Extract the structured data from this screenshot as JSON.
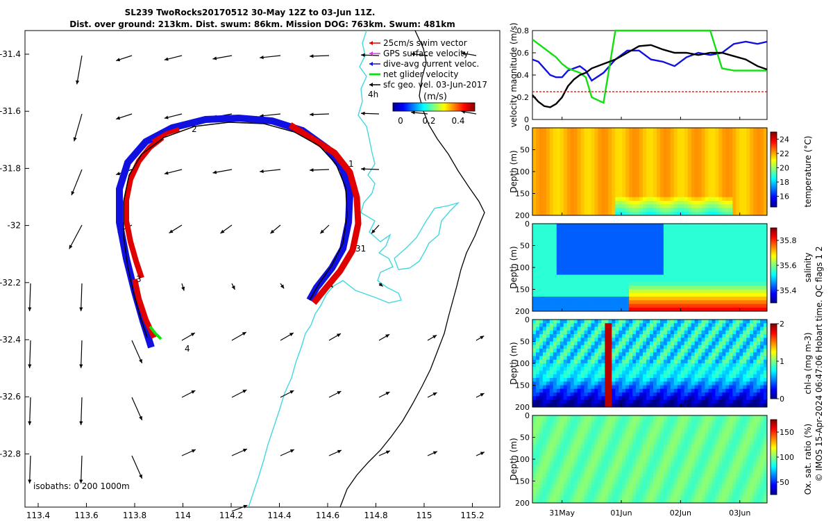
{
  "title_line1": "SL239 TwoRocks20170512 30-May 12Z to 03-Jun 11Z.",
  "title_line2": "Dist. over ground: 213km. Dist. swum: 86km. Mission DOG: 763km. Swum: 481km",
  "credit": "© IMOS 15-Apr-2024 06:47:06 Hobart time. QC flags 1  2",
  "map": {
    "xticks": [
      "113.4",
      "113.6",
      "113.8",
      "114",
      "114.2",
      "114.4",
      "114.6",
      "114.8",
      "115",
      "115.2"
    ],
    "yticks": [
      "-31.4",
      "-31.6",
      "-31.8",
      "-32",
      "-32.2",
      "-32.4",
      "-32.6",
      "-32.8"
    ],
    "legend": [
      "25cm/s swim vector",
      "GPS surface velocity",
      "dive-avg current veloc.",
      "net glider velocity",
      "sfc geo. vel. 03-Jun-2017"
    ],
    "legend_colors": [
      "#e00000",
      "#d040d0",
      "#1010e0",
      "#10e010",
      "#000000"
    ],
    "scale_label": "4h",
    "colorbar_unit": "(m/s)",
    "colorbar_ticks": [
      "0",
      "0.2",
      "0.4"
    ],
    "day_labels": [
      "1",
      "2",
      "31",
      "3",
      "4"
    ],
    "isobaths_label": "isobaths: 0   200  1000m",
    "coast_color": "#000000",
    "isobath_color": "#40d8e0"
  },
  "chart_data": [
    {
      "type": "line",
      "title": "",
      "ylabel": "velocity magnitude (m/s)",
      "ylim": [
        0,
        0.8
      ],
      "yticks": [
        "0",
        "0.2",
        "0.4",
        "0.6",
        "0.8"
      ],
      "xlabel": "",
      "x_days": [
        0.0,
        0.1,
        0.2,
        0.3,
        0.4,
        0.5,
        0.6,
        0.7,
        0.8,
        0.9,
        1.0,
        1.2,
        1.4,
        1.6,
        1.8,
        2.0,
        2.2,
        2.4,
        2.6,
        2.8,
        3.0,
        3.2,
        3.4,
        3.6,
        3.8,
        3.96
      ],
      "series": [
        {
          "name": "dive-avg current veloc.",
          "color": "#1010e0",
          "values": [
            0.54,
            0.52,
            0.46,
            0.4,
            0.38,
            0.38,
            0.44,
            0.46,
            0.48,
            0.44,
            0.35,
            0.42,
            0.54,
            0.62,
            0.62,
            0.54,
            0.52,
            0.48,
            0.56,
            0.6,
            0.58,
            0.6,
            0.68,
            0.7,
            0.68,
            0.7
          ]
        },
        {
          "name": "net glider velocity",
          "color": "#10e010",
          "values": [
            0.72,
            0.68,
            0.64,
            0.6,
            0.56,
            0.5,
            0.46,
            0.44,
            0.42,
            0.38,
            0.2,
            0.15,
            0.8,
            0.8,
            0.8,
            0.8,
            0.8,
            0.8,
            0.8,
            0.8,
            0.8,
            0.46,
            0.44,
            0.44,
            0.44,
            0.44
          ]
        },
        {
          "name": "sfc geo. vel. (black)",
          "color": "#000000",
          "values": [
            0.22,
            0.16,
            0.12,
            0.11,
            0.14,
            0.2,
            0.3,
            0.36,
            0.4,
            0.42,
            0.46,
            0.5,
            0.54,
            0.6,
            0.66,
            0.67,
            0.63,
            0.6,
            0.6,
            0.58,
            0.6,
            0.6,
            0.57,
            0.54,
            0.48,
            0.45
          ]
        },
        {
          "name": "25cm/s swim vector",
          "color": "#e00000",
          "values": [
            0.25,
            0.25,
            0.25,
            0.25,
            0.25,
            0.25,
            0.25,
            0.25,
            0.25,
            0.25,
            0.25,
            0.25,
            0.25,
            0.25,
            0.25,
            0.25,
            0.25,
            0.25,
            0.25,
            0.25,
            0.25,
            0.25,
            0.25,
            0.25,
            0.25,
            0.25
          ]
        }
      ]
    },
    {
      "type": "heatmap",
      "variable": "temperature",
      "colorbar_label": "temperature (°C)",
      "clim": [
        14.5,
        25
      ],
      "cbar_ticks": [
        16,
        18,
        20,
        22,
        24
      ],
      "ylabel": "Depth (m)",
      "yticks": [
        "0",
        "50",
        "100",
        "150",
        "200"
      ],
      "ylim": [
        0,
        200
      ],
      "base_value": 21.8,
      "deep_value": 18.5
    },
    {
      "type": "heatmap",
      "variable": "salinity",
      "colorbar_label": "salinity",
      "clim": [
        35.3,
        35.9
      ],
      "cbar_ticks": [
        35.4,
        35.6,
        35.8
      ],
      "ylabel": "Depth (m)",
      "yticks": [
        "0",
        "50",
        "100",
        "150",
        "200"
      ],
      "ylim": [
        0,
        200
      ],
      "base_value": 35.55,
      "deep_value": 35.82
    },
    {
      "type": "heatmap",
      "variable": "chl-a",
      "colorbar_label": "chl-a (mg m-3)",
      "clim": [
        0,
        2
      ],
      "cbar_ticks": [
        0,
        1,
        2
      ],
      "ylabel": "Depth (m)",
      "yticks": [
        "0",
        "50",
        "100",
        "150",
        "200"
      ],
      "ylim": [
        0,
        200
      ],
      "base_value": 0.75,
      "deep_value": 0.1
    },
    {
      "type": "heatmap",
      "variable": "oxygen",
      "colorbar_label": "Ox. sat. ratio (%)",
      "clim": [
        25,
        175
      ],
      "cbar_ticks": [
        50,
        100,
        150
      ],
      "ylabel": "Depth (m)",
      "yticks": [
        "0",
        "50",
        "100",
        "150",
        "200"
      ],
      "ylim": [
        0,
        200
      ],
      "base_value": 96,
      "deep_value": 100
    }
  ],
  "time_axis": {
    "labels": [
      "31May",
      "01Jun",
      "02Jun",
      "03Jun"
    ],
    "values": [
      0.5,
      1.5,
      2.5,
      3.5
    ],
    "range": [
      0,
      3.96
    ]
  }
}
